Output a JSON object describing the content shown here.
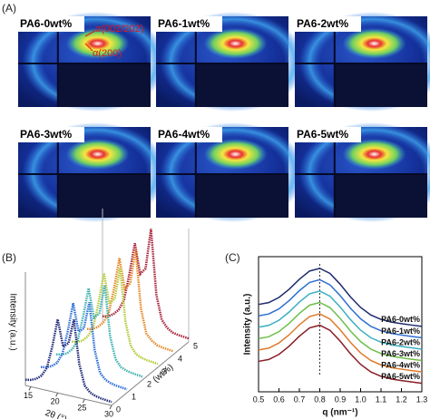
{
  "panel_a": {
    "label": "(A)",
    "images": [
      "PA6-0wt%",
      "PA6-1wt%",
      "PA6-2wt%",
      "PA6-3wt%",
      "PA6-4wt%",
      "PA6-5wt%"
    ],
    "annotations": [
      "α(002/202)",
      "α(200)"
    ]
  },
  "chart_data": [
    {
      "type": "waterfall3d",
      "panel_label": "(B)",
      "ylabel": "Intensity (a.u.)",
      "xlabel": "2θ (°)",
      "zlabel": "(wt%)",
      "x": [
        14,
        15,
        16,
        17,
        18,
        19,
        20,
        21,
        22,
        23,
        24,
        25,
        26,
        27,
        28,
        29,
        30
      ],
      "xlim": [
        14,
        30
      ],
      "xticks": [
        15,
        20,
        25,
        30
      ],
      "ylim": [
        0,
        10
      ],
      "zticks": [
        0,
        1,
        2,
        3,
        4,
        5
      ],
      "series": [
        {
          "color": "#1f2a7a",
          "values": [
            0.5,
            0.6,
            0.8,
            1.2,
            2.0,
            4.0,
            6.5,
            4.2,
            4.6,
            6.8,
            3.0,
            1.2,
            0.7,
            0.5,
            0.4,
            0.35,
            0.3
          ]
        },
        {
          "color": "#2e6fd8",
          "values": [
            0.5,
            0.6,
            0.8,
            1.2,
            2.1,
            4.2,
            6.8,
            4.4,
            4.8,
            7.2,
            3.1,
            1.2,
            0.7,
            0.5,
            0.4,
            0.35,
            0.3
          ]
        },
        {
          "color": "#3fb3b0",
          "values": [
            0.5,
            0.6,
            0.8,
            1.3,
            2.2,
            4.4,
            7.0,
            4.5,
            5.0,
            7.6,
            3.2,
            1.3,
            0.7,
            0.5,
            0.4,
            0.35,
            0.3
          ]
        },
        {
          "color": "#b7c93a",
          "values": [
            0.5,
            0.6,
            0.8,
            1.3,
            2.2,
            4.5,
            7.2,
            4.6,
            5.2,
            8.0,
            3.3,
            1.3,
            0.7,
            0.5,
            0.4,
            0.35,
            0.3
          ]
        },
        {
          "color": "#e58a2b",
          "values": [
            0.5,
            0.6,
            0.9,
            1.4,
            2.3,
            4.6,
            7.4,
            4.8,
            5.4,
            8.5,
            3.4,
            1.3,
            0.8,
            0.5,
            0.4,
            0.35,
            0.3
          ]
        },
        {
          "color": "#a8233a",
          "values": [
            0.5,
            0.6,
            0.9,
            1.4,
            2.4,
            4.8,
            7.6,
            5.0,
            5.6,
            9.2,
            3.5,
            1.4,
            0.8,
            0.5,
            0.4,
            0.35,
            0.3
          ]
        }
      ]
    },
    {
      "type": "line",
      "panel_label": "(C)",
      "xlabel": "q (nm⁻¹)",
      "ylabel": "Intensity (a.u.)",
      "x": [
        0.5,
        0.55,
        0.6,
        0.65,
        0.7,
        0.75,
        0.8,
        0.85,
        0.9,
        0.95,
        1.0,
        1.05,
        1.1,
        1.15,
        1.2,
        1.25,
        1.3
      ],
      "xlim": [
        0.5,
        1.3
      ],
      "xticks": [
        0.5,
        0.6,
        0.7,
        0.8,
        0.9,
        {
          "value": 1,
          "label": "1.0"
        },
        1.1,
        1.2,
        1.3
      ],
      "ylim": [
        0,
        9.5
      ],
      "reference_line_x": 0.8,
      "series": [
        {
          "name": "PA6-0wt%",
          "color": "#1f2a6e",
          "values": [
            6.14,
            6.27,
            6.63,
            7.21,
            7.91,
            8.49,
            8.68,
            8.32,
            7.56,
            6.68,
            5.93,
            5.4,
            5.09,
            4.9,
            4.79,
            4.69,
            4.6
          ]
        },
        {
          "name": "PA6-1wt%",
          "color": "#2f6fd0",
          "values": [
            5.34,
            5.47,
            5.83,
            6.41,
            7.11,
            7.69,
            7.88,
            7.52,
            6.76,
            5.88,
            5.13,
            4.6,
            4.29,
            4.1,
            3.99,
            3.89,
            3.8
          ]
        },
        {
          "name": "PA6-2wt%",
          "color": "#3bb0c0",
          "values": [
            4.54,
            4.67,
            5.03,
            5.61,
            6.31,
            6.89,
            7.08,
            6.72,
            5.96,
            5.08,
            4.33,
            3.8,
            3.49,
            3.3,
            3.19,
            3.09,
            3.0
          ]
        },
        {
          "name": "PA6-3wt%",
          "color": "#6cbf4a",
          "values": [
            3.74,
            3.87,
            4.23,
            4.81,
            5.51,
            6.09,
            6.28,
            5.92,
            5.16,
            4.28,
            3.53,
            3.0,
            2.69,
            2.5,
            2.39,
            2.29,
            2.2
          ]
        },
        {
          "name": "PA6-4wt%",
          "color": "#e07a2a",
          "values": [
            2.94,
            3.07,
            3.43,
            4.01,
            4.71,
            5.29,
            5.48,
            5.12,
            4.36,
            3.48,
            2.73,
            2.2,
            1.89,
            1.7,
            1.59,
            1.49,
            1.4
          ]
        },
        {
          "name": "PA6-5wt%",
          "color": "#8a1c24",
          "values": [
            2.14,
            2.27,
            2.63,
            3.21,
            3.91,
            4.49,
            4.68,
            4.32,
            3.56,
            2.68,
            1.93,
            1.4,
            1.09,
            0.9,
            0.79,
            0.69,
            0.6
          ]
        }
      ]
    }
  ]
}
